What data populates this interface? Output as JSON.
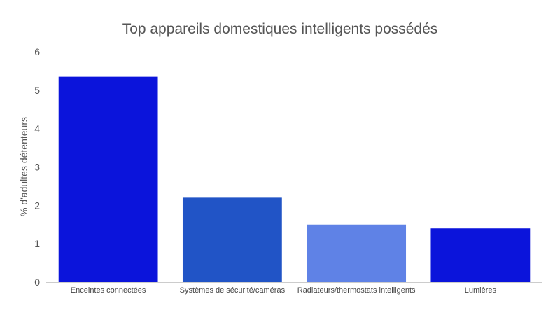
{
  "chart_data": {
    "type": "bar",
    "title": "Top appareils domestiques intelligents possédés",
    "xlabel": "",
    "ylabel": "% d'adultes détenteurs",
    "categories": [
      "Enceintes connectées",
      "Systèmes de sécurité/caméras",
      "Radiateurs/thermostats intelligents",
      "Lumières"
    ],
    "values": [
      5.35,
      2.2,
      1.5,
      1.4
    ],
    "colors": [
      "#0b14db",
      "#2154c6",
      "#5f82e6",
      "#0b14db"
    ],
    "ylim": [
      0,
      6
    ],
    "yticks": [
      0,
      1,
      2,
      3,
      4,
      5,
      6
    ],
    "grid": false,
    "legend": "none"
  }
}
